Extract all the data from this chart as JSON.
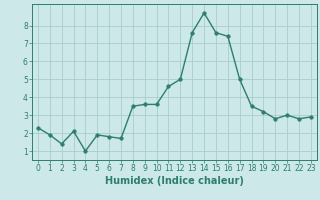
{
  "x": [
    0,
    1,
    2,
    3,
    4,
    5,
    6,
    7,
    8,
    9,
    10,
    11,
    12,
    13,
    14,
    15,
    16,
    17,
    18,
    19,
    20,
    21,
    22,
    23
  ],
  "y": [
    2.3,
    1.9,
    1.4,
    2.1,
    1.0,
    1.9,
    1.8,
    1.7,
    3.5,
    3.6,
    3.6,
    4.6,
    5.0,
    7.6,
    8.7,
    7.6,
    7.4,
    5.0,
    3.5,
    3.2,
    2.8,
    3.0,
    2.8,
    2.9
  ],
  "xlabel": "Humidex (Indice chaleur)",
  "bg_color": "#cce8e8",
  "grid_color": "#aacccc",
  "line_color": "#2e7d6e",
  "marker_color": "#2e7d6e",
  "xlim": [
    -0.5,
    23.5
  ],
  "ylim": [
    0.5,
    9.2
  ],
  "yticks": [
    1,
    2,
    3,
    4,
    5,
    6,
    7,
    8
  ],
  "xtick_labels": [
    "0",
    "1",
    "2",
    "3",
    "4",
    "5",
    "6",
    "7",
    "8",
    "9",
    "10",
    "11",
    "12",
    "13",
    "14",
    "15",
    "16",
    "17",
    "18",
    "19",
    "20",
    "21",
    "22",
    "23"
  ],
  "xlabel_fontsize": 7,
  "tick_fontsize": 5.5,
  "line_width": 1.0,
  "marker_size": 2.5
}
